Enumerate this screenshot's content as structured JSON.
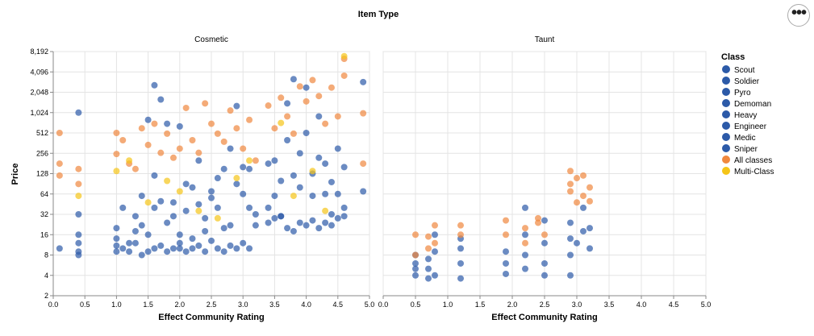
{
  "menu": {
    "icon": "ellipsis-icon",
    "glyph": "•••"
  },
  "chart_data": {
    "type": "scatter",
    "title": "Item Type",
    "xlabel": "Effect Community Rating",
    "ylabel": "Price",
    "y_scale": "log2",
    "ylim": [
      2,
      8192
    ],
    "xlim": [
      0,
      5
    ],
    "x_ticks": [
      "0.0",
      "0.5",
      "1.0",
      "1.5",
      "2.0",
      "2.5",
      "3.0",
      "3.5",
      "4.0",
      "4.5",
      "5.0"
    ],
    "y_ticks": [
      "2",
      "4",
      "8",
      "16",
      "32",
      "64",
      "128",
      "256",
      "512",
      "1,024",
      "2,048",
      "4,096",
      "8,192"
    ],
    "grid": true,
    "legend": {
      "title": "Class",
      "placement": "right",
      "entries": [
        {
          "name": "Scout",
          "color": "#2c5aa8"
        },
        {
          "name": "Soldier",
          "color": "#2c5aa8"
        },
        {
          "name": "Pyro",
          "color": "#2c5aa8"
        },
        {
          "name": "Demoman",
          "color": "#2c5aa8"
        },
        {
          "name": "Heavy",
          "color": "#2c5aa8"
        },
        {
          "name": "Engineer",
          "color": "#2c5aa8"
        },
        {
          "name": "Medic",
          "color": "#2c5aa8"
        },
        {
          "name": "Sniper",
          "color": "#2c5aa8"
        },
        {
          "name": "All classes",
          "color": "#f0883e"
        },
        {
          "name": "Multi-Class",
          "color": "#f5c518"
        }
      ]
    },
    "facets": [
      {
        "name": "Cosmetic",
        "series": [
          {
            "name": "Scout",
            "color": "#2c5aa8",
            "points": [
              [
                0.4,
                8
              ],
              [
                0.4,
                16
              ],
              [
                0.4,
                32
              ],
              [
                0.4,
                1024
              ],
              [
                1.0,
                9
              ],
              [
                1.0,
                20
              ],
              [
                1.1,
                40
              ],
              [
                1.2,
                12
              ],
              [
                1.3,
                30
              ],
              [
                1.4,
                60
              ],
              [
                1.5,
                16
              ],
              [
                1.6,
                2600
              ],
              [
                1.6,
                120
              ],
              [
                1.7,
                1600
              ],
              [
                1.8,
                24
              ],
              [
                1.9,
                48
              ],
              [
                2.0,
                640
              ],
              [
                2.0,
                10
              ],
              [
                2.1,
                90
              ],
              [
                2.2,
                14
              ],
              [
                2.3,
                200
              ],
              [
                2.4,
                28
              ],
              [
                2.5,
                56
              ],
              [
                2.6,
                110
              ],
              [
                2.7,
                20
              ],
              [
                2.8,
                300
              ],
              [
                2.9,
                1280
              ],
              [
                3.0,
                64
              ],
              [
                3.1,
                150
              ],
              [
                3.2,
                32
              ],
              [
                3.4,
                40
              ],
              [
                3.5,
                200
              ],
              [
                3.6,
                100
              ],
              [
                3.7,
                1400
              ],
              [
                3.8,
                3200
              ],
              [
                3.9,
                256
              ],
              [
                4.0,
                512
              ],
              [
                4.1,
                128
              ],
              [
                4.2,
                900
              ],
              [
                4.3,
                64
              ],
              [
                4.4,
                32
              ],
              [
                4.5,
                300
              ],
              [
                4.6,
                160
              ],
              [
                4.9,
                2900
              ],
              [
                4.9,
                70
              ]
            ]
          },
          {
            "name": "Soldier",
            "color": "#2c5aa8",
            "points": [
              [
                0.1,
                10
              ],
              [
                0.4,
                12
              ],
              [
                1.0,
                14
              ],
              [
                1.1,
                10
              ],
              [
                1.3,
                18
              ],
              [
                1.4,
                22
              ],
              [
                1.5,
                800
              ],
              [
                1.6,
                40
              ],
              [
                1.7,
                50
              ],
              [
                1.8,
                700
              ],
              [
                1.9,
                30
              ],
              [
                2.0,
                16
              ],
              [
                2.1,
                36
              ],
              [
                2.2,
                80
              ],
              [
                2.3,
                45
              ],
              [
                2.4,
                18
              ],
              [
                2.5,
                70
              ],
              [
                2.6,
                40
              ],
              [
                2.7,
                150
              ],
              [
                2.8,
                22
              ],
              [
                2.9,
                90
              ],
              [
                3.0,
                160
              ],
              [
                3.1,
                40
              ],
              [
                3.2,
                22
              ],
              [
                3.4,
                180
              ],
              [
                3.5,
                60
              ],
              [
                3.6,
                30
              ],
              [
                3.7,
                400
              ],
              [
                3.8,
                120
              ],
              [
                3.9,
                80
              ],
              [
                4.0,
                2400
              ],
              [
                4.1,
                60
              ],
              [
                4.2,
                220
              ],
              [
                4.3,
                180
              ],
              [
                4.4,
                96
              ],
              [
                4.5,
                64
              ],
              [
                4.6,
                40
              ]
            ]
          },
          {
            "name": "Engineer",
            "color": "#2c5aa8",
            "points": [
              [
                0.4,
                9
              ],
              [
                1.0,
                11
              ],
              [
                1.2,
                9
              ],
              [
                1.3,
                12
              ],
              [
                1.4,
                8
              ],
              [
                1.5,
                9
              ],
              [
                1.6,
                10
              ],
              [
                1.7,
                11
              ],
              [
                1.8,
                9
              ],
              [
                1.9,
                10
              ],
              [
                2.0,
                12
              ],
              [
                2.1,
                9
              ],
              [
                2.2,
                10
              ],
              [
                2.3,
                11
              ],
              [
                2.4,
                9
              ],
              [
                2.5,
                13
              ],
              [
                2.6,
                10
              ],
              [
                2.7,
                9
              ],
              [
                2.8,
                11
              ],
              [
                2.9,
                10
              ],
              [
                3.0,
                12
              ],
              [
                3.1,
                10
              ],
              [
                3.4,
                24
              ],
              [
                3.5,
                28
              ],
              [
                3.6,
                30
              ],
              [
                3.7,
                20
              ],
              [
                3.8,
                18
              ],
              [
                3.9,
                24
              ],
              [
                4.0,
                22
              ],
              [
                4.1,
                26
              ],
              [
                4.2,
                20
              ],
              [
                4.3,
                24
              ],
              [
                4.4,
                22
              ],
              [
                4.5,
                28
              ],
              [
                4.6,
                30
              ]
            ]
          },
          {
            "name": "All classes",
            "color": "#f0883e",
            "points": [
              [
                0.1,
                512
              ],
              [
                0.1,
                180
              ],
              [
                0.1,
                120
              ],
              [
                0.4,
                150
              ],
              [
                0.4,
                90
              ],
              [
                1.0,
                512
              ],
              [
                1.0,
                250
              ],
              [
                1.1,
                400
              ],
              [
                1.2,
                180
              ],
              [
                1.3,
                150
              ],
              [
                1.4,
                600
              ],
              [
                1.5,
                340
              ],
              [
                1.6,
                700
              ],
              [
                1.7,
                260
              ],
              [
                1.8,
                500
              ],
              [
                1.9,
                220
              ],
              [
                2.0,
                300
              ],
              [
                2.1,
                1200
              ],
              [
                2.2,
                400
              ],
              [
                2.3,
                260
              ],
              [
                2.4,
                1400
              ],
              [
                2.5,
                700
              ],
              [
                2.6,
                500
              ],
              [
                2.7,
                380
              ],
              [
                2.8,
                1100
              ],
              [
                2.9,
                600
              ],
              [
                3.0,
                300
              ],
              [
                3.1,
                800
              ],
              [
                3.2,
                200
              ],
              [
                3.4,
                1300
              ],
              [
                3.5,
                600
              ],
              [
                3.6,
                1700
              ],
              [
                3.7,
                900
              ],
              [
                3.8,
                500
              ],
              [
                3.9,
                2500
              ],
              [
                4.0,
                1500
              ],
              [
                4.1,
                3100
              ],
              [
                4.2,
                1800
              ],
              [
                4.3,
                700
              ],
              [
                4.4,
                2400
              ],
              [
                4.5,
                900
              ],
              [
                4.6,
                3600
              ],
              [
                4.6,
                6400
              ],
              [
                4.9,
                1000
              ],
              [
                4.9,
                180
              ]
            ]
          },
          {
            "name": "Multi-Class",
            "color": "#f5c518",
            "points": [
              [
                0.4,
                60
              ],
              [
                1.0,
                140
              ],
              [
                1.2,
                200
              ],
              [
                1.5,
                48
              ],
              [
                1.8,
                100
              ],
              [
                2.0,
                70
              ],
              [
                2.3,
                36
              ],
              [
                2.6,
                28
              ],
              [
                2.9,
                110
              ],
              [
                3.1,
                200
              ],
              [
                3.6,
                720
              ],
              [
                3.8,
                60
              ],
              [
                4.1,
                140
              ],
              [
                4.3,
                36
              ],
              [
                4.6,
                7000
              ]
            ]
          }
        ]
      },
      {
        "name": "Taunt",
        "series": [
          {
            "name": "Scout",
            "color": "#2c5aa8",
            "points": [
              [
                0.5,
                4
              ],
              [
                0.5,
                5
              ],
              [
                0.5,
                6
              ],
              [
                0.5,
                8
              ],
              [
                0.7,
                3.6
              ],
              [
                0.7,
                5
              ],
              [
                0.7,
                7
              ],
              [
                0.8,
                4
              ],
              [
                0.8,
                9
              ],
              [
                0.8,
                16
              ],
              [
                1.2,
                3.6
              ],
              [
                1.2,
                6
              ],
              [
                1.2,
                10
              ],
              [
                1.2,
                14
              ],
              [
                1.9,
                4.2
              ],
              [
                1.9,
                6
              ],
              [
                1.9,
                9
              ],
              [
                2.2,
                5
              ],
              [
                2.2,
                8
              ],
              [
                2.2,
                16
              ],
              [
                2.2,
                40
              ],
              [
                2.5,
                4
              ],
              [
                2.5,
                6
              ],
              [
                2.5,
                12
              ],
              [
                2.5,
                26
              ],
              [
                2.9,
                4
              ],
              [
                2.9,
                8
              ],
              [
                2.9,
                14
              ],
              [
                2.9,
                24
              ],
              [
                3.0,
                12
              ],
              [
                3.1,
                18
              ],
              [
                3.1,
                40
              ],
              [
                3.2,
                10
              ],
              [
                3.2,
                20
              ]
            ]
          },
          {
            "name": "All classes",
            "color": "#f0883e",
            "points": [
              [
                0.5,
                16
              ],
              [
                0.5,
                8
              ],
              [
                0.7,
                15
              ],
              [
                0.7,
                10
              ],
              [
                0.8,
                22
              ],
              [
                0.8,
                12
              ],
              [
                1.2,
                22
              ],
              [
                1.2,
                16
              ],
              [
                1.9,
                26
              ],
              [
                1.9,
                16
              ],
              [
                2.2,
                20
              ],
              [
                2.2,
                12
              ],
              [
                2.4,
                28
              ],
              [
                2.4,
                24
              ],
              [
                2.5,
                16
              ],
              [
                2.9,
                140
              ],
              [
                2.9,
                90
              ],
              [
                2.9,
                70
              ],
              [
                3.0,
                110
              ],
              [
                3.0,
                48
              ],
              [
                3.1,
                120
              ],
              [
                3.1,
                60
              ],
              [
                3.2,
                80
              ],
              [
                3.2,
                50
              ]
            ]
          }
        ]
      }
    ]
  }
}
